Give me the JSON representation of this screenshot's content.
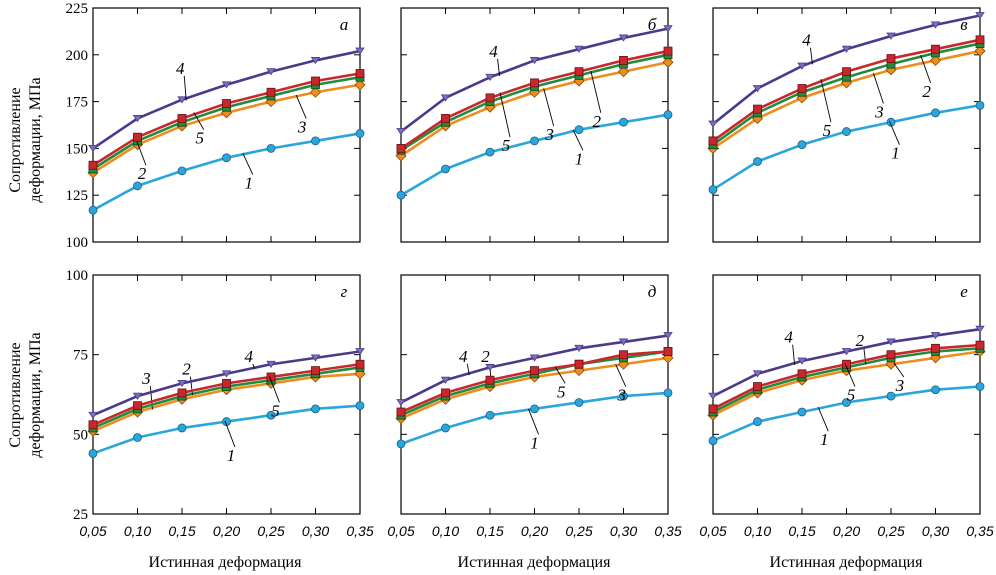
{
  "chart_data": [
    {
      "type": "line",
      "panel_letter": "а",
      "x": [
        0.05,
        0.1,
        0.15,
        0.2,
        0.25,
        0.3,
        0.35
      ],
      "ylim": [
        100,
        225
      ],
      "yticks": [
        100,
        125,
        150,
        175,
        200,
        225
      ],
      "xlabel": "",
      "ylabel": "Сопротивление деформации, МПа",
      "series": [
        {
          "name": "1",
          "values": [
            117,
            130,
            138,
            145,
            150,
            154,
            158
          ]
        },
        {
          "name": "2",
          "values": [
            139,
            154,
            164,
            172,
            178,
            184,
            188
          ]
        },
        {
          "name": "3",
          "values": [
            137,
            152,
            162,
            169,
            175,
            180,
            184
          ]
        },
        {
          "name": "4",
          "values": [
            150,
            166,
            176,
            184,
            191,
            197,
            202
          ]
        },
        {
          "name": "5",
          "values": [
            141,
            156,
            166,
            174,
            180,
            186,
            190
          ]
        }
      ]
    },
    {
      "type": "line",
      "panel_letter": "б",
      "x": [
        0.05,
        0.1,
        0.15,
        0.2,
        0.25,
        0.3,
        0.35
      ],
      "ylim": [
        100,
        225
      ],
      "yticks": [
        100,
        125,
        150,
        175,
        200,
        225
      ],
      "xlabel": "",
      "ylabel": "",
      "series": [
        {
          "name": "1",
          "values": [
            125,
            139,
            148,
            154,
            160,
            164,
            168
          ]
        },
        {
          "name": "2",
          "values": [
            149,
            164,
            175,
            183,
            189,
            195,
            200
          ]
        },
        {
          "name": "3",
          "values": [
            146,
            162,
            172,
            180,
            186,
            191,
            196
          ]
        },
        {
          "name": "4",
          "values": [
            159,
            177,
            188,
            197,
            203,
            209,
            214
          ]
        },
        {
          "name": "5",
          "values": [
            150,
            166,
            177,
            185,
            191,
            197,
            202
          ]
        }
      ]
    },
    {
      "type": "line",
      "panel_letter": "в",
      "x": [
        0.05,
        0.1,
        0.15,
        0.2,
        0.25,
        0.3,
        0.35
      ],
      "ylim": [
        100,
        225
      ],
      "yticks": [
        100,
        125,
        150,
        175,
        200,
        225
      ],
      "xlabel": "",
      "ylabel": "",
      "series": [
        {
          "name": "1",
          "values": [
            128,
            143,
            152,
            159,
            164,
            169,
            173
          ]
        },
        {
          "name": "2",
          "values": [
            152,
            169,
            180,
            188,
            195,
            201,
            206
          ]
        },
        {
          "name": "3",
          "values": [
            150,
            166,
            177,
            185,
            192,
            197,
            202
          ]
        },
        {
          "name": "4",
          "values": [
            163,
            182,
            194,
            203,
            210,
            216,
            221
          ]
        },
        {
          "name": "5",
          "values": [
            154,
            171,
            182,
            191,
            198,
            203,
            208
          ]
        }
      ]
    },
    {
      "type": "line",
      "panel_letter": "г",
      "x": [
        0.05,
        0.1,
        0.15,
        0.2,
        0.25,
        0.3,
        0.35
      ],
      "ylim": [
        25,
        100
      ],
      "yticks": [
        25,
        50,
        75,
        100
      ],
      "xlabel": "Истинная деформация",
      "ylabel": "Сопротивление деформации, МПа",
      "xticklabels": [
        "0,05",
        "0,10",
        "0,15",
        "0,20",
        "0,25",
        "0,30",
        "0,35"
      ],
      "series": [
        {
          "name": "1",
          "values": [
            44,
            49,
            52,
            54,
            56,
            58,
            59
          ]
        },
        {
          "name": "2",
          "values": [
            52,
            58,
            62,
            65,
            67,
            69,
            71
          ]
        },
        {
          "name": "3",
          "values": [
            51,
            57,
            61,
            64,
            66,
            68,
            69
          ]
        },
        {
          "name": "4",
          "values": [
            56,
            62,
            66,
            69,
            72,
            74,
            76
          ]
        },
        {
          "name": "5",
          "values": [
            53,
            59,
            63,
            66,
            68,
            70,
            72
          ]
        }
      ]
    },
    {
      "type": "line",
      "panel_letter": "д",
      "x": [
        0.05,
        0.1,
        0.15,
        0.2,
        0.25,
        0.3,
        0.35
      ],
      "ylim": [
        25,
        100
      ],
      "yticks": [
        25,
        50,
        75,
        100
      ],
      "xlabel": "Истинная деформация",
      "ylabel": "",
      "xticklabels": [
        "0,05",
        "0,10",
        "0,15",
        "0,20",
        "0,25",
        "0,30",
        "0,35"
      ],
      "series": [
        {
          "name": "1",
          "values": [
            47,
            52,
            56,
            58,
            60,
            62,
            63
          ]
        },
        {
          "name": "2",
          "values": [
            56,
            62,
            66,
            69,
            72,
            74,
            76
          ]
        },
        {
          "name": "3",
          "values": [
            55,
            61,
            65,
            68,
            70,
            72,
            74
          ]
        },
        {
          "name": "4",
          "values": [
            60,
            67,
            71,
            74,
            77,
            79,
            81
          ]
        },
        {
          "name": "5",
          "values": [
            57,
            63,
            67,
            70,
            72,
            75,
            76
          ]
        }
      ]
    },
    {
      "type": "line",
      "panel_letter": "е",
      "x": [
        0.05,
        0.1,
        0.15,
        0.2,
        0.25,
        0.3,
        0.35
      ],
      "ylim": [
        25,
        100
      ],
      "yticks": [
        25,
        50,
        75,
        100
      ],
      "xlabel": "Истинная деформация",
      "ylabel": "",
      "xticklabels": [
        "0,05",
        "0,10",
        "0,15",
        "0,20",
        "0,25",
        "0,30",
        "0,35"
      ],
      "series": [
        {
          "name": "1",
          "values": [
            48,
            54,
            57,
            60,
            62,
            64,
            65
          ]
        },
        {
          "name": "2",
          "values": [
            57,
            64,
            68,
            71,
            74,
            76,
            77
          ]
        },
        {
          "name": "3",
          "values": [
            56,
            63,
            67,
            70,
            72,
            74,
            76
          ]
        },
        {
          "name": "4",
          "values": [
            62,
            69,
            73,
            76,
            79,
            81,
            83
          ]
        },
        {
          "name": "5",
          "values": [
            58,
            65,
            69,
            72,
            75,
            77,
            78
          ]
        }
      ]
    }
  ],
  "series_colors": {
    "1": "#2aa6dc",
    "2": "#228b3c",
    "3": "#f08c1e",
    "4": "#4b3a8c",
    "5": "#c8282d"
  },
  "ylabel_lines": [
    "Сопротивление",
    "деформации, МПа"
  ]
}
